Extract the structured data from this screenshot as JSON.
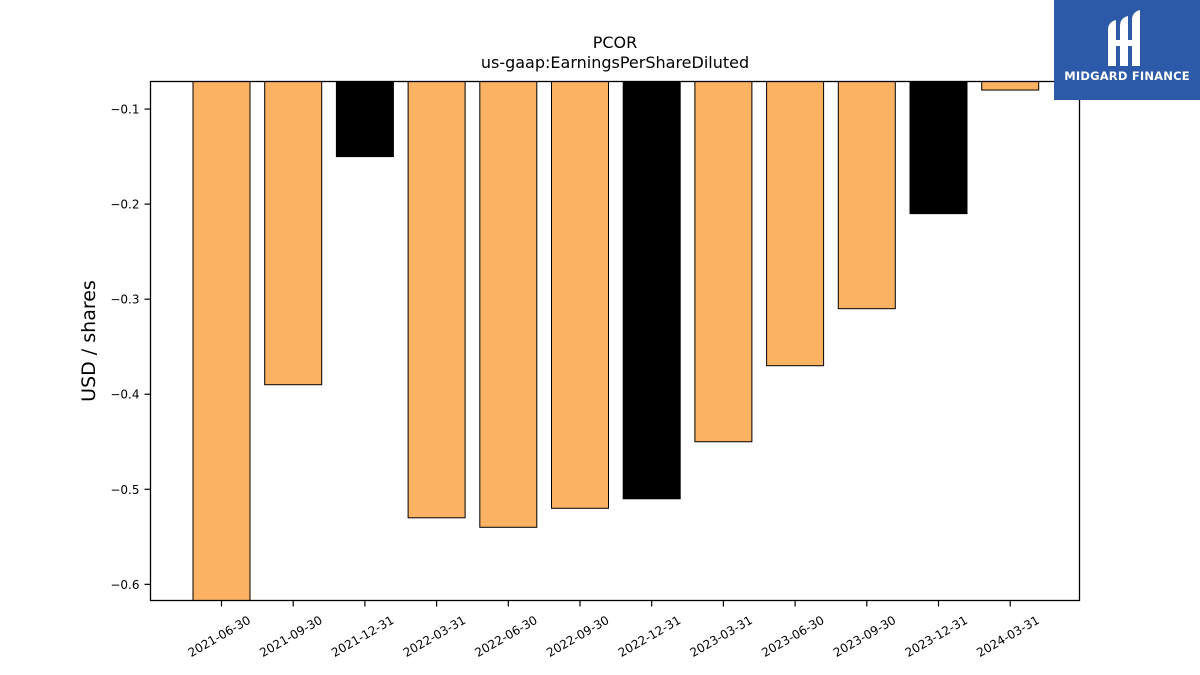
{
  "chart_data": {
    "type": "bar",
    "title": "PCOR",
    "subtitle": "us-gaap:EarningsPerShareDiluted",
    "xlabel": "",
    "ylabel": "USD / shares",
    "categories": [
      "2021-06-30",
      "2021-09-30",
      "2021-12-31",
      "2022-03-31",
      "2022-06-30",
      "2022-09-30",
      "2022-12-31",
      "2023-03-31",
      "2023-06-30",
      "2023-09-30",
      "2023-12-31",
      "2024-03-31"
    ],
    "values": [
      -0.62,
      -0.39,
      -0.15,
      -0.53,
      -0.54,
      -0.52,
      -0.51,
      -0.45,
      -0.37,
      -0.31,
      -0.21,
      -0.08
    ],
    "bar_colors": [
      "#fbb263",
      "#fbb263",
      "#000000",
      "#fbb263",
      "#fbb263",
      "#fbb263",
      "#000000",
      "#fbb263",
      "#fbb263",
      "#fbb263",
      "#000000",
      "#fbb263"
    ],
    "ylim": [
      -0.617,
      -0.071
    ],
    "yticks": [
      -0.1,
      -0.2,
      -0.3,
      -0.4,
      -0.5,
      -0.6
    ],
    "ytick_labels": [
      "−0.1",
      "−0.2",
      "−0.3",
      "−0.4",
      "−0.5",
      "−0.6"
    ],
    "grid": false
  },
  "brand": {
    "name": "MIDGARD FINANCE",
    "color": "#2c5aa8",
    "icon": "midgard-logo-icon"
  }
}
